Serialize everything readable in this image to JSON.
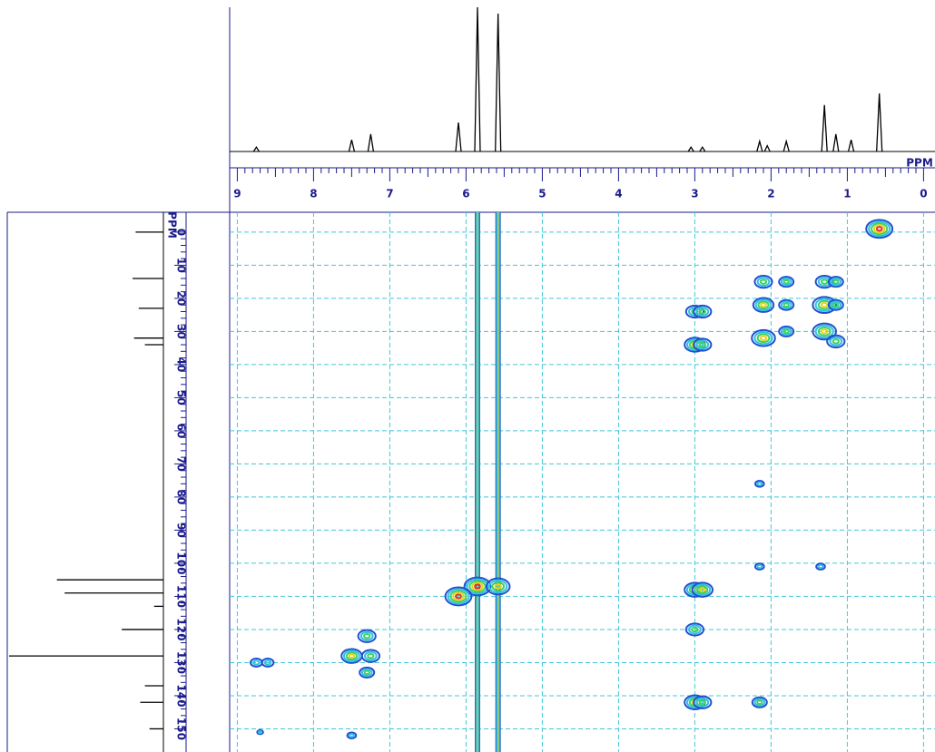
{
  "chart_data": {
    "type": "nmr2d",
    "xlabel": "PPM",
    "ylabel": "PPM",
    "xlim": [
      9.1,
      -0.15
    ],
    "xticks": [
      9,
      8,
      7,
      6,
      5,
      4,
      3,
      2,
      1,
      0
    ],
    "ylim": [
      -6,
      157
    ],
    "yticks": [
      0,
      10,
      20,
      30,
      40,
      50,
      60,
      70,
      80,
      90,
      100,
      110,
      120,
      130,
      140,
      150
    ],
    "grid": true,
    "proton_spectrum": {
      "x": [
        8.75,
        7.5,
        7.25,
        6.1,
        5.85,
        5.58,
        3.05,
        2.9,
        2.15,
        2.05,
        1.8,
        1.3,
        1.15,
        0.95,
        0.58
      ],
      "values": [
        3,
        8,
        12,
        20,
        100,
        95,
        3,
        3,
        7,
        4,
        7,
        32,
        12,
        8,
        40
      ]
    },
    "carbon_spectrum": {
      "y": [
        0,
        14,
        23,
        32,
        34,
        105,
        109,
        113,
        120,
        128,
        137,
        142,
        150
      ],
      "values": [
        18,
        20,
        16,
        19,
        12,
        69,
        64,
        6,
        27,
        100,
        12,
        15,
        9
      ]
    },
    "cross_peaks": {
      "x": [
        0.58,
        2.1,
        1.8,
        1.3,
        1.15,
        2.1,
        1.8,
        1.3,
        1.15,
        2.1,
        1.8,
        1.3,
        1.15,
        3.0,
        2.9,
        3.0,
        2.9,
        5.85,
        5.58,
        6.1,
        3.0,
        2.9,
        3.0,
        3.0,
        2.9,
        7.3,
        7.5,
        7.25,
        7.3,
        8.75,
        8.6,
        2.15,
        2.15,
        2.15,
        1.35,
        7.5,
        8.7
      ],
      "y": [
        -1,
        15,
        15,
        15,
        15,
        22,
        22,
        22,
        22,
        32,
        30,
        30,
        33,
        24,
        24,
        34,
        34,
        107,
        107,
        110,
        108,
        108,
        120,
        142,
        142,
        122,
        128,
        128,
        133,
        130,
        130,
        142,
        76,
        101,
        101,
        152,
        151
      ],
      "values": [
        9,
        6,
        5,
        6,
        5,
        7,
        5,
        8,
        5,
        8,
        5,
        8,
        6,
        6,
        6,
        7,
        6,
        9,
        8,
        9,
        7,
        7,
        6,
        7,
        6,
        6,
        7,
        6,
        5,
        4,
        4,
        5,
        3,
        3,
        3,
        3,
        2
      ]
    },
    "t1_noise": {
      "x": [
        5.85,
        5.58
      ]
    }
  }
}
